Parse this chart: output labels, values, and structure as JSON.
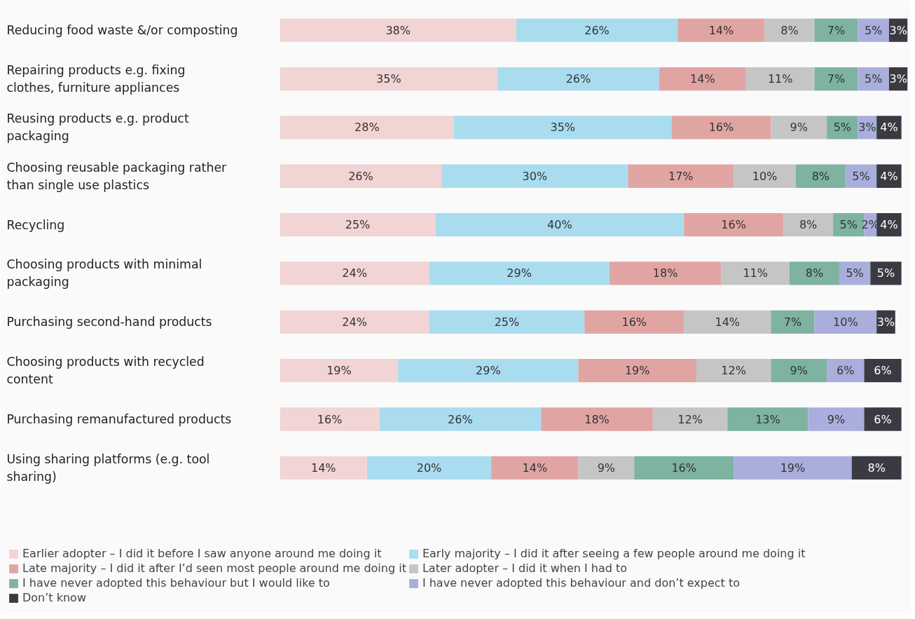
{
  "chart_data": {
    "type": "bar",
    "orientation": "horizontal",
    "stacked": true,
    "grid": false,
    "legend": "bottom",
    "tick_labels": "y",
    "categories": [
      "Reducing food waste &/or composting",
      "Repairing products e.g. fixing clothes, furniture appliances",
      "Reusing products e.g. product packaging",
      "Choosing reusable packaging rather than single use plastics",
      "Recycling",
      "Choosing products with minimal packaging",
      "Purchasing second-hand products",
      "Choosing products with recycled content",
      "Purchasing remanufactured products",
      "Using sharing platforms (e.g. tool sharing)"
    ],
    "series": [
      {
        "name": "Earlier adopter – I did it before I saw anyone around me doing it",
        "color": "#f2d4d5",
        "values": [
          38,
          35,
          28,
          26,
          25,
          24,
          24,
          19,
          16,
          14
        ],
        "value_labels": [
          "38%",
          "35%",
          "28%",
          "26%",
          "25%",
          "24%",
          "24%",
          "19%",
          "16%",
          "14%"
        ]
      },
      {
        "name": "Early majority – I did it after seeing a few people around me doing it",
        "color": "#a9dcef",
        "values": [
          26,
          26,
          35,
          30,
          40,
          29,
          25,
          29,
          26,
          20
        ],
        "value_labels": [
          "26%",
          "26%",
          "35%",
          "30%",
          "40%",
          "29%",
          "25%",
          "29%",
          "26%",
          "20%"
        ]
      },
      {
        "name": "Late majority – I did it after I’d seen most people around me doing it",
        "color": "#e0a5a3",
        "values": [
          14,
          14,
          16,
          17,
          16,
          18,
          16,
          19,
          18,
          14
        ],
        "value_labels": [
          "14%",
          "14%",
          "16%",
          "17%",
          "16%",
          "18%",
          "16%",
          "19%",
          "18%",
          "14%"
        ]
      },
      {
        "name": "Later adopter – I did it when I had to",
        "color": "#c5c5c5",
        "values": [
          8,
          11,
          9,
          10,
          8,
          11,
          14,
          12,
          12,
          9
        ],
        "value_labels": [
          "8%",
          "11%",
          "9%",
          "10%",
          "8%",
          "11%",
          "14%",
          "12%",
          "12%",
          "9%"
        ]
      },
      {
        "name": "I have never adopted this behaviour but I would like to",
        "color": "#7db3a0",
        "values": [
          7,
          7,
          5,
          8,
          5,
          8,
          7,
          9,
          13,
          16
        ],
        "value_labels": [
          "7%",
          "7%",
          "5%",
          "8%",
          "5%",
          "8%",
          "7%",
          "9%",
          "13%",
          "16%"
        ]
      },
      {
        "name": "I have never adopted this behaviour and don’t expect to",
        "color": "#a9aedc",
        "values": [
          5,
          5,
          3,
          5,
          2,
          5,
          10,
          6,
          9,
          19
        ],
        "value_labels": [
          "5%",
          "5%",
          "3%",
          "5%",
          "2%",
          "5%",
          "10%",
          "6%",
          "9%",
          "19%"
        ]
      },
      {
        "name": "Don’t know",
        "color": "#3a3b42",
        "values": [
          3,
          3,
          4,
          4,
          4,
          5,
          3,
          6,
          6,
          8
        ],
        "value_labels": [
          "3%",
          "3%",
          "4%",
          "4%",
          "4%",
          "5%",
          "3%",
          "6%",
          "6%",
          "8%"
        ]
      }
    ]
  }
}
